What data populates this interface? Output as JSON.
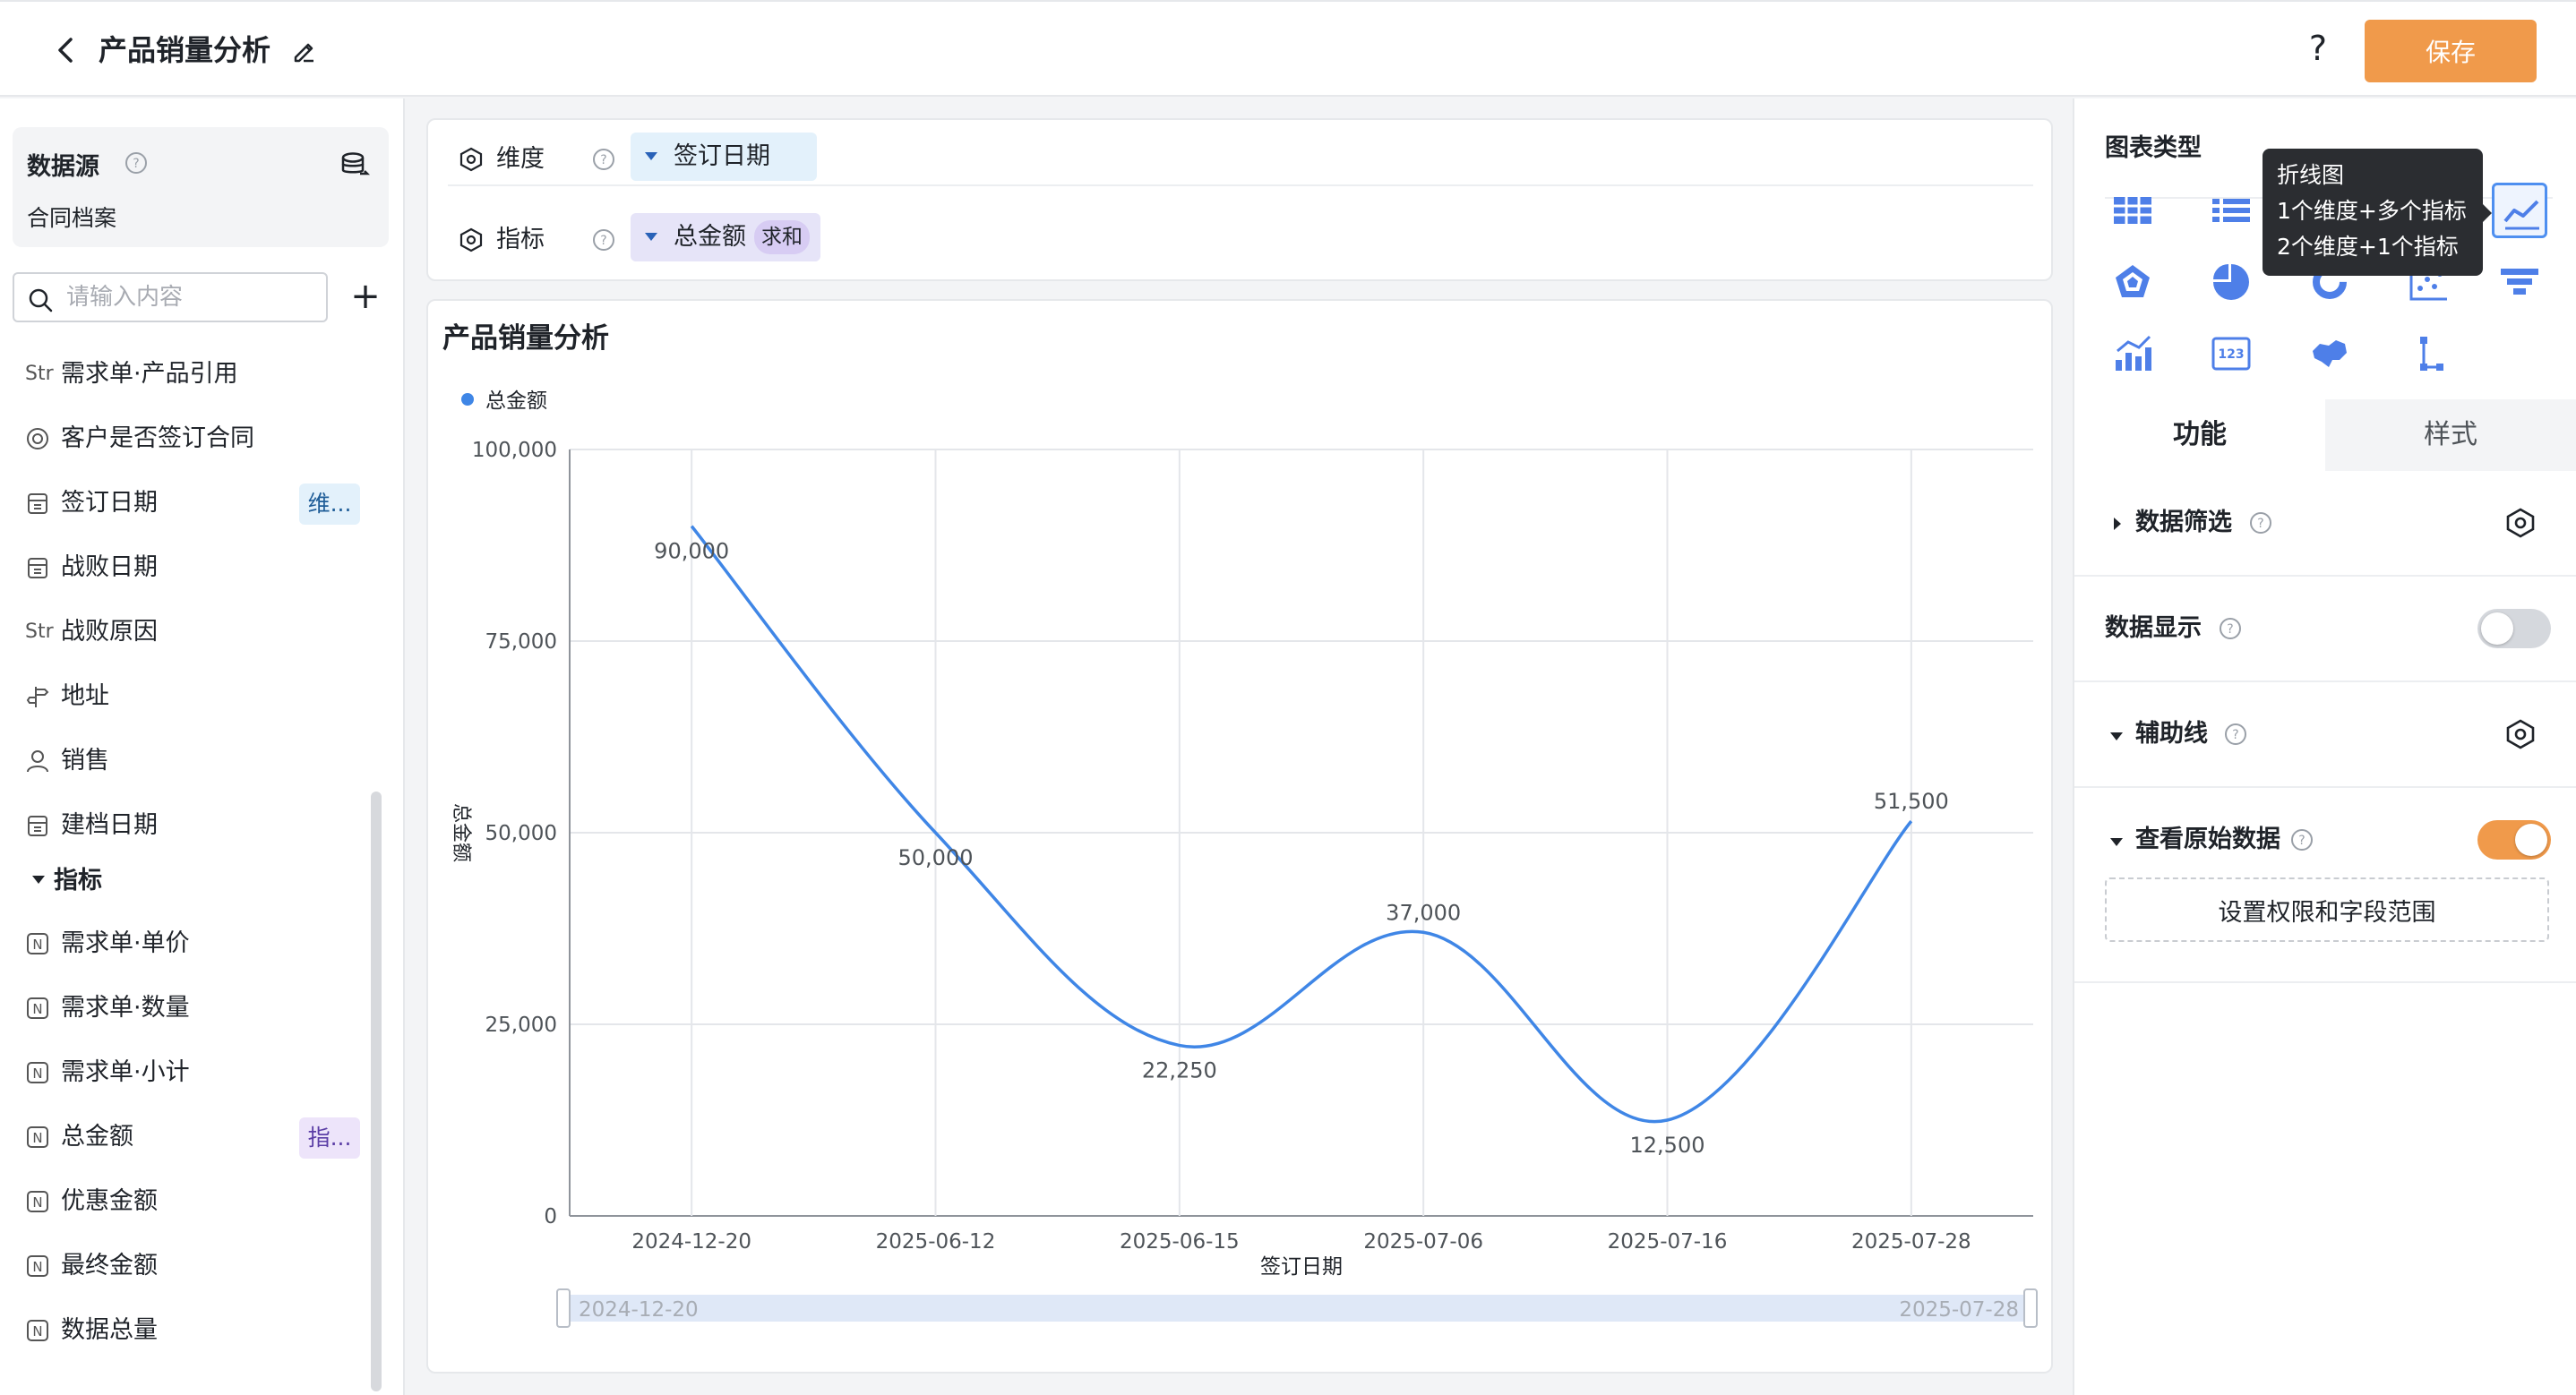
{
  "header": {
    "title": "产品销量分析",
    "help": "?",
    "save_label": "保存"
  },
  "sidebar": {
    "datasource_title": "数据源",
    "datasource_name": "合同档案",
    "search_placeholder": "请输入内容",
    "add": "+",
    "dimension_fields": [
      {
        "icon": "Str",
        "label": "需求单·产品引用",
        "tag": ""
      },
      {
        "icon": "radio",
        "label": "客户是否签订合同",
        "tag": ""
      },
      {
        "icon": "calendar",
        "label": "签订日期",
        "tag": "维..."
      },
      {
        "icon": "calendar",
        "label": "战败日期",
        "tag": ""
      },
      {
        "icon": "Str",
        "label": "战败原因",
        "tag": ""
      },
      {
        "icon": "location",
        "label": "地址",
        "tag": ""
      },
      {
        "icon": "user",
        "label": "销售",
        "tag": ""
      },
      {
        "icon": "calendar",
        "label": "建档日期",
        "tag": ""
      }
    ],
    "metrics_section": "指标",
    "metric_fields": [
      {
        "icon": "N",
        "label": "需求单·单价",
        "tag": ""
      },
      {
        "icon": "N",
        "label": "需求单·数量",
        "tag": ""
      },
      {
        "icon": "N",
        "label": "需求单·小计",
        "tag": ""
      },
      {
        "icon": "N",
        "label": "总金额",
        "tag": "指..."
      },
      {
        "icon": "N",
        "label": "优惠金额",
        "tag": ""
      },
      {
        "icon": "N",
        "label": "最终金额",
        "tag": ""
      },
      {
        "icon": "N",
        "label": "数据总量",
        "tag": ""
      }
    ]
  },
  "config": {
    "dimension_label": "维度",
    "dimension_value": "签订日期",
    "metric_label": "指标",
    "metric_value": "总金额",
    "metric_agg": "求和"
  },
  "chart_data": {
    "type": "line",
    "title": "产品销量分析",
    "xlabel": "签订日期",
    "ylabel": "总金额",
    "categories": [
      "2024-12-20",
      "2025-06-12",
      "2025-06-15",
      "2025-07-06",
      "2025-07-16",
      "2025-07-28"
    ],
    "series": [
      {
        "name": "总金额",
        "values": [
          90000,
          50000,
          22250,
          37000,
          12500,
          51500
        ],
        "color": "#3f86e6"
      }
    ],
    "data_labels": [
      "90,000",
      "50,000",
      "22,250",
      "37,000",
      "12,500",
      "51,500"
    ],
    "y_ticks": [
      "0",
      "25,000",
      "50,000",
      "75,000",
      "100,000"
    ],
    "ylim": [
      0,
      100000
    ],
    "grid": true,
    "legend": "top-left",
    "smooth": true,
    "range_start": "2024-12-20",
    "range_end": "2025-07-28"
  },
  "right_panel": {
    "chart_type_title": "图表类型",
    "chart_types": [
      "table-icon",
      "list-icon",
      "bar-icon",
      "column-icon",
      "line-icon",
      "radar-icon",
      "pie-icon",
      "donut-icon",
      "scatter-icon",
      "funnel-icon",
      "combo-icon",
      "number-card-icon",
      "map-icon",
      "tree-icon"
    ],
    "tooltip": {
      "title": "折线图",
      "line1": "1个维度+多个指标",
      "line2": "2个维度+1个指标"
    },
    "tabs": {
      "function": "功能",
      "style": "样式"
    },
    "options": {
      "data_filter": "数据筛选",
      "data_display": "数据显示",
      "data_display_on": false,
      "aux_line": "辅助线",
      "view_raw": "查看原始数据",
      "view_raw_on": true,
      "permission_btn": "设置权限和字段范围"
    },
    "accent_color": "#f09a4b"
  }
}
